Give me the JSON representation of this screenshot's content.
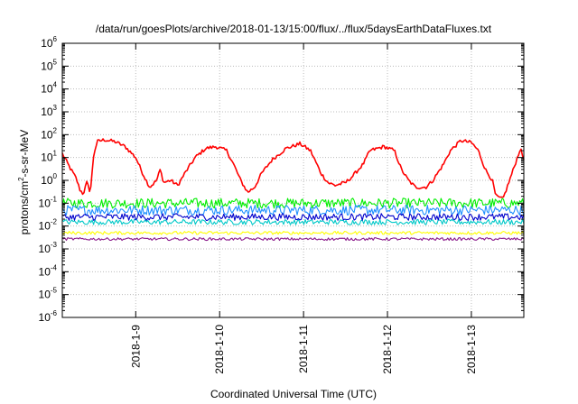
{
  "chart_data": {
    "type": "line",
    "title": "/data/run/goesPlots/archive/2018-01-13/15:00/flux/../flux/5daysEarthDataFluxes.txt",
    "xlabel": "Coordinated Universal Time (UTC)",
    "ylabel": {
      "base": "protons/cm",
      "sup": "2",
      "rest": "-s-sr-MeV"
    },
    "yscale": "log",
    "ylim": [
      1e-06,
      1000000.0
    ],
    "xlim": [
      "2018-01-08T03:00",
      "2018-01-13T15:00"
    ],
    "grid": true,
    "legend": "none",
    "x_ticks": [
      {
        "date": "2018-01-09T00:00",
        "label": "2018-1-9"
      },
      {
        "date": "2018-01-10T00:00",
        "label": "2018-1-10"
      },
      {
        "date": "2018-01-11T00:00",
        "label": "2018-1-11"
      },
      {
        "date": "2018-01-12T00:00",
        "label": "2018-1-12"
      },
      {
        "date": "2018-01-13T00:00",
        "label": "2018-1-13"
      }
    ],
    "y_ticks": [
      {
        "value": 1e-06,
        "base": "10",
        "exp": "-6"
      },
      {
        "value": 1e-05,
        "base": "10",
        "exp": "-5"
      },
      {
        "value": 0.0001,
        "base": "10",
        "exp": "-4"
      },
      {
        "value": 0.001,
        "base": "10",
        "exp": "-3"
      },
      {
        "value": 0.01,
        "base": "10",
        "exp": "-2"
      },
      {
        "value": 0.1,
        "base": "10",
        "exp": "-1"
      },
      {
        "value": 1,
        "base": "10",
        "exp": "0"
      },
      {
        "value": 10,
        "base": "10",
        "exp": "1"
      },
      {
        "value": 100,
        "base": "10",
        "exp": "2"
      },
      {
        "value": 1000,
        "base": "10",
        "exp": "3"
      },
      {
        "value": 10000,
        "base": "10",
        "exp": "4"
      },
      {
        "value": 100000,
        "base": "10",
        "exp": "5"
      },
      {
        "value": 1000000,
        "base": "10",
        "exp": "6"
      }
    ],
    "series": [
      {
        "color": "#ff0000",
        "noise": 0.08,
        "points": [
          [
            "2018-01-08T03:00",
            15
          ],
          [
            "2018-01-08T05:00",
            4
          ],
          [
            "2018-01-08T07:00",
            1.2
          ],
          [
            "2018-01-08T08:00",
            0.4
          ],
          [
            "2018-01-08T09:00",
            0.25
          ],
          [
            "2018-01-08T10:00",
            0.8
          ],
          [
            "2018-01-08T11:00",
            0.3
          ],
          [
            "2018-01-08T11:30",
            2
          ],
          [
            "2018-01-08T12:00",
            15
          ],
          [
            "2018-01-08T13:00",
            50
          ],
          [
            "2018-01-08T15:00",
            60
          ],
          [
            "2018-01-08T18:00",
            50
          ],
          [
            "2018-01-08T21:00",
            30
          ],
          [
            "2018-01-09T00:00",
            10
          ],
          [
            "2018-01-09T02:00",
            2
          ],
          [
            "2018-01-09T04:00",
            0.5
          ],
          [
            "2018-01-09T06:00",
            1
          ],
          [
            "2018-01-09T07:00",
            3
          ],
          [
            "2018-01-09T08:00",
            0.8
          ],
          [
            "2018-01-09T10:00",
            1
          ],
          [
            "2018-01-09T12:00",
            0.6
          ],
          [
            "2018-01-09T14:00",
            2
          ],
          [
            "2018-01-09T17:00",
            10
          ],
          [
            "2018-01-09T20:00",
            25
          ],
          [
            "2018-01-09T23:00",
            30
          ],
          [
            "2018-01-10T02:00",
            20
          ],
          [
            "2018-01-10T04:00",
            5
          ],
          [
            "2018-01-10T06:00",
            1
          ],
          [
            "2018-01-10T08:00",
            0.3
          ],
          [
            "2018-01-10T10:00",
            0.5
          ],
          [
            "2018-01-10T12:00",
            2
          ],
          [
            "2018-01-10T15:00",
            8
          ],
          [
            "2018-01-10T19:00",
            25
          ],
          [
            "2018-01-10T23:00",
            40
          ],
          [
            "2018-01-11T02:00",
            20
          ],
          [
            "2018-01-11T05:00",
            2
          ],
          [
            "2018-01-11T07:00",
            0.8
          ],
          [
            "2018-01-11T09:00",
            0.6
          ],
          [
            "2018-01-11T12:00",
            0.8
          ],
          [
            "2018-01-11T14:00",
            1.5
          ],
          [
            "2018-01-11T17:00",
            5
          ],
          [
            "2018-01-11T19:00",
            20
          ],
          [
            "2018-01-11T23:00",
            30
          ],
          [
            "2018-01-12T02:00",
            20
          ],
          [
            "2018-01-12T04:00",
            3
          ],
          [
            "2018-01-12T06:00",
            1
          ],
          [
            "2018-01-12T08:00",
            0.5
          ],
          [
            "2018-01-12T11:00",
            0.5
          ],
          [
            "2018-01-12T13:00",
            1
          ],
          [
            "2018-01-12T16:00",
            5
          ],
          [
            "2018-01-12T18:00",
            20
          ],
          [
            "2018-01-12T21:00",
            55
          ],
          [
            "2018-01-13T00:00",
            45
          ],
          [
            "2018-01-13T02:00",
            20
          ],
          [
            "2018-01-13T04:00",
            3
          ],
          [
            "2018-01-13T06:00",
            1
          ],
          [
            "2018-01-13T07:00",
            0.2
          ],
          [
            "2018-01-13T09:00",
            0.15
          ],
          [
            "2018-01-13T10:00",
            0.4
          ],
          [
            "2018-01-13T12:00",
            3
          ],
          [
            "2018-01-13T14:00",
            25
          ],
          [
            "2018-01-13T15:00",
            8
          ]
        ]
      },
      {
        "color": "#00ee00",
        "noise": 0.22,
        "points": [
          [
            "2018-01-08T03:00",
            0.1
          ],
          [
            "2018-01-13T15:00",
            0.1
          ]
        ]
      },
      {
        "color": "#1e90ff",
        "noise": 0.22,
        "points": [
          [
            "2018-01-08T03:00",
            0.05
          ],
          [
            "2018-01-13T15:00",
            0.05
          ]
        ]
      },
      {
        "color": "#00c8c8",
        "noise": 0.12,
        "points": [
          [
            "2018-01-08T03:00",
            0.015
          ],
          [
            "2018-01-13T15:00",
            0.015
          ]
        ]
      },
      {
        "color": "#0000cc",
        "noise": 0.15,
        "points": [
          [
            "2018-01-08T03:00",
            0.025
          ],
          [
            "2018-01-13T15:00",
            0.025
          ]
        ]
      },
      {
        "color": "#ffff00",
        "noise": 0.07,
        "points": [
          [
            "2018-01-08T03:00",
            0.005
          ],
          [
            "2018-01-13T15:00",
            0.005
          ]
        ]
      },
      {
        "color": "#8b1a8b",
        "noise": 0.06,
        "points": [
          [
            "2018-01-08T03:00",
            0.0027
          ],
          [
            "2018-01-13T15:00",
            0.0027
          ]
        ]
      }
    ]
  }
}
